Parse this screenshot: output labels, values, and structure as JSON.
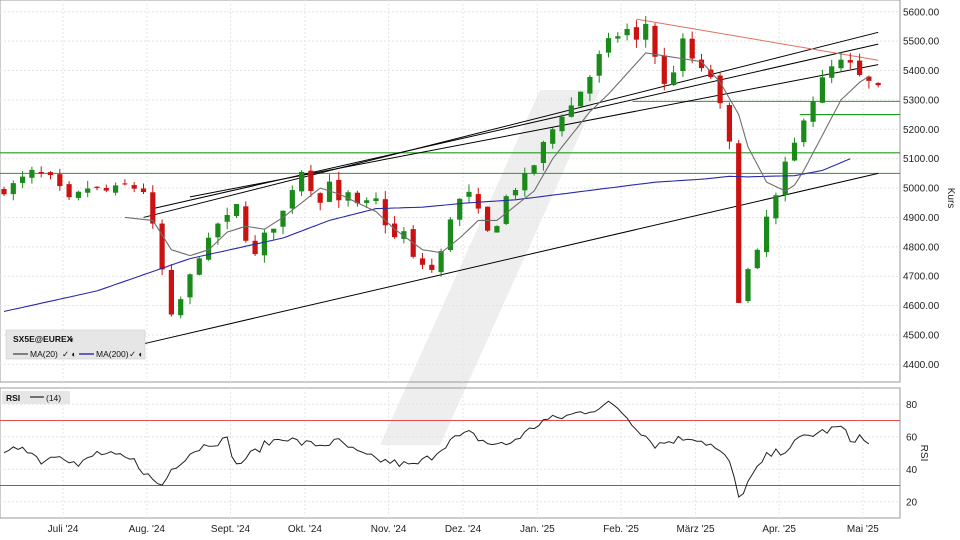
{
  "chart_data": [
    {
      "type": "candlestick",
      "instrument": "SX5E@EUREX",
      "ylabel": "Kurs",
      "ylim": [
        4340,
        5640
      ],
      "yticks": [
        "5600.00",
        "5500.00",
        "5400.00",
        "5300.00",
        "5200.00",
        "5100.00",
        "5000.00",
        "4900.00",
        "4800.00",
        "4700.00",
        "4600.00",
        "4500.00",
        "4400.00"
      ],
      "x_months": [
        "Juli '24",
        "Aug. '24",
        "Sept. '24",
        "Okt. '24",
        "Nov. '24",
        "Dez. '24",
        "Jan. '25",
        "Feb. '25",
        "März '25",
        "Apr. '25",
        "Mai '25"
      ],
      "grid": true,
      "legend": {
        "title": "SX5E@EUREX",
        "entries": [
          {
            "label": "MA(20)",
            "color": "#555555"
          },
          {
            "label": "MA(200)",
            "color": "#2a2aa8"
          }
        ],
        "placement": "bottom-left"
      },
      "colors": {
        "up": "#1a8a1a",
        "down": "#cc1111",
        "ma20": "#6f6f6f",
        "ma200": "#2a2aa8",
        "support": "#1e9e1e",
        "resistance": "#e07060",
        "trend": "#000000"
      },
      "close_path": [
        [
          0,
          4990
        ],
        [
          3,
          5055
        ],
        [
          5,
          5035
        ],
        [
          7,
          4960
        ],
        [
          9,
          5000
        ],
        [
          11,
          4990
        ],
        [
          13,
          5010
        ],
        [
          15,
          4990
        ],
        [
          16,
          4870
        ],
        [
          17,
          4720
        ],
        [
          18,
          4560
        ],
        [
          19,
          4620
        ],
        [
          20,
          4700
        ],
        [
          21,
          4770
        ],
        [
          22,
          4820
        ],
        [
          23,
          4880
        ],
        [
          24,
          4900
        ],
        [
          25,
          4940
        ],
        [
          26,
          4830
        ],
        [
          27,
          4770
        ],
        [
          28,
          4840
        ],
        [
          29,
          4870
        ],
        [
          30,
          4920
        ],
        [
          31,
          5000
        ],
        [
          32,
          5060
        ],
        [
          33,
          5000
        ],
        [
          34,
          4950
        ],
        [
          35,
          5030
        ],
        [
          36,
          4950
        ],
        [
          37,
          4980
        ],
        [
          38,
          4940
        ],
        [
          40,
          4960
        ],
        [
          41,
          4880
        ],
        [
          42,
          4830
        ],
        [
          43,
          4850
        ],
        [
          44,
          4760
        ],
        [
          45,
          4740
        ],
        [
          46,
          4720
        ],
        [
          47,
          4780
        ],
        [
          48,
          4900
        ],
        [
          49,
          4960
        ],
        [
          50,
          4980
        ],
        [
          51,
          4920
        ],
        [
          52,
          4850
        ],
        [
          53,
          4880
        ],
        [
          54,
          4970
        ],
        [
          55,
          5000
        ],
        [
          56,
          5040
        ],
        [
          57,
          5080
        ],
        [
          58,
          5150
        ],
        [
          59,
          5200
        ],
        [
          60,
          5250
        ],
        [
          61,
          5280
        ],
        [
          62,
          5330
        ],
        [
          63,
          5380
        ],
        [
          64,
          5450
        ],
        [
          65,
          5500
        ],
        [
          66,
          5520
        ],
        [
          67,
          5540
        ],
        [
          68,
          5500
        ],
        [
          69,
          5560
        ],
        [
          70,
          5450
        ],
        [
          71,
          5350
        ],
        [
          72,
          5400
        ],
        [
          73,
          5500
        ],
        [
          74,
          5440
        ],
        [
          75,
          5400
        ],
        [
          76,
          5380
        ],
        [
          77,
          5280
        ],
        [
          78,
          5150
        ],
        [
          79,
          4620
        ],
        [
          80,
          4720
        ],
        [
          81,
          4780
        ],
        [
          82,
          4900
        ],
        [
          83,
          4970
        ],
        [
          84,
          5080
        ],
        [
          85,
          5150
        ],
        [
          86,
          5240
        ],
        [
          87,
          5300
        ],
        [
          88,
          5370
        ],
        [
          89,
          5410
        ],
        [
          90,
          5430
        ],
        [
          91,
          5420
        ],
        [
          92,
          5380
        ],
        [
          93,
          5360
        ],
        [
          94,
          5340
        ]
      ],
      "ma20_path": [
        [
          13,
          4900
        ],
        [
          16,
          4890
        ],
        [
          18,
          4790
        ],
        [
          20,
          4770
        ],
        [
          22,
          4790
        ],
        [
          24,
          4850
        ],
        [
          26,
          4870
        ],
        [
          28,
          4860
        ],
        [
          30,
          4900
        ],
        [
          32,
          4950
        ],
        [
          34,
          5000
        ],
        [
          36,
          4980
        ],
        [
          40,
          4920
        ],
        [
          42,
          4860
        ],
        [
          45,
          4790
        ],
        [
          47,
          4780
        ],
        [
          49,
          4830
        ],
        [
          51,
          4890
        ],
        [
          53,
          4890
        ],
        [
          55,
          4940
        ],
        [
          57,
          4990
        ],
        [
          59,
          5100
        ],
        [
          61,
          5180
        ],
        [
          63,
          5260
        ],
        [
          65,
          5320
        ],
        [
          67,
          5390
        ],
        [
          69,
          5460
        ],
        [
          71,
          5450
        ],
        [
          73,
          5440
        ],
        [
          75,
          5430
        ],
        [
          77,
          5360
        ],
        [
          79,
          5250
        ],
        [
          80,
          5140
        ],
        [
          82,
          5020
        ],
        [
          84,
          4990
        ],
        [
          85,
          5010
        ],
        [
          86,
          5060
        ],
        [
          88,
          5180
        ],
        [
          90,
          5300
        ],
        [
          92,
          5360
        ],
        [
          93,
          5380
        ]
      ],
      "ma200_path": [
        [
          0,
          4580
        ],
        [
          10,
          4650
        ],
        [
          20,
          4760
        ],
        [
          30,
          4830
        ],
        [
          35,
          4890
        ],
        [
          40,
          4930
        ],
        [
          45,
          4935
        ],
        [
          50,
          4950
        ],
        [
          55,
          4960
        ],
        [
          60,
          4980
        ],
        [
          65,
          5000
        ],
        [
          70,
          5020
        ],
        [
          75,
          5030
        ],
        [
          78,
          5040
        ],
        [
          80,
          5038
        ],
        [
          82,
          5040
        ],
        [
          85,
          5042
        ],
        [
          88,
          5060
        ],
        [
          91,
          5100
        ]
      ],
      "trendlines": [
        {
          "kind": "trend",
          "x1": 15,
          "y1": 4470,
          "x2": 94,
          "y2": 5050
        },
        {
          "kind": "trend",
          "x1": 15,
          "y1": 4900,
          "x2": 94,
          "y2": 5530
        },
        {
          "kind": "trend",
          "x1": 16,
          "y1": 4930,
          "x2": 94,
          "y2": 5490
        },
        {
          "kind": "trend",
          "x1": 20,
          "y1": 4970,
          "x2": 94,
          "y2": 5420
        },
        {
          "kind": "resistance",
          "x1": 68,
          "y1": 5575,
          "x2": 94,
          "y2": 5435
        }
      ],
      "support_levels": [
        {
          "y": 5295,
          "x_start": 68,
          "x_end": 94
        },
        {
          "y": 5250,
          "x_start": 86,
          "x_end": 94
        },
        {
          "y": 5120,
          "x_start": 0,
          "x_end": 94
        },
        {
          "y": 5050,
          "x_start": 0,
          "x_end": 94
        }
      ]
    },
    {
      "type": "line",
      "indicator": "RSI",
      "period_label": "(14)",
      "ylabel": "RSI",
      "ylim": [
        10,
        90
      ],
      "yticks": [
        "80",
        "60",
        "40",
        "20"
      ],
      "reference_lines": [
        70,
        30
      ],
      "colors": {
        "line": "#222222",
        "overbought": "#e05050",
        "oversold": "#1e9e1e"
      },
      "series_path": [
        [
          0,
          48
        ],
        [
          2,
          55
        ],
        [
          4,
          45
        ],
        [
          6,
          50
        ],
        [
          8,
          42
        ],
        [
          10,
          50
        ],
        [
          12,
          48
        ],
        [
          14,
          45
        ],
        [
          16,
          33
        ],
        [
          17,
          30
        ],
        [
          18,
          40
        ],
        [
          20,
          50
        ],
        [
          22,
          56
        ],
        [
          24,
          58
        ],
        [
          25,
          42
        ],
        [
          26,
          47
        ],
        [
          28,
          55
        ],
        [
          30,
          60
        ],
        [
          32,
          56
        ],
        [
          34,
          55
        ],
        [
          36,
          57
        ],
        [
          38,
          50
        ],
        [
          40,
          46
        ],
        [
          42,
          44
        ],
        [
          44,
          42
        ],
        [
          46,
          48
        ],
        [
          48,
          58
        ],
        [
          50,
          62
        ],
        [
          52,
          56
        ],
        [
          54,
          55
        ],
        [
          56,
          62
        ],
        [
          58,
          70
        ],
        [
          60,
          72
        ],
        [
          62,
          75
        ],
        [
          64,
          78
        ],
        [
          65,
          80
        ],
        [
          66,
          78
        ],
        [
          68,
          66
        ],
        [
          70,
          55
        ],
        [
          72,
          58
        ],
        [
          74,
          60
        ],
        [
          76,
          55
        ],
        [
          78,
          45
        ],
        [
          79,
          22
        ],
        [
          80,
          32
        ],
        [
          82,
          48
        ],
        [
          84,
          52
        ],
        [
          86,
          60
        ],
        [
          88,
          63
        ],
        [
          90,
          66
        ],
        [
          91,
          58
        ],
        [
          92,
          60
        ],
        [
          93,
          55
        ]
      ]
    }
  ]
}
